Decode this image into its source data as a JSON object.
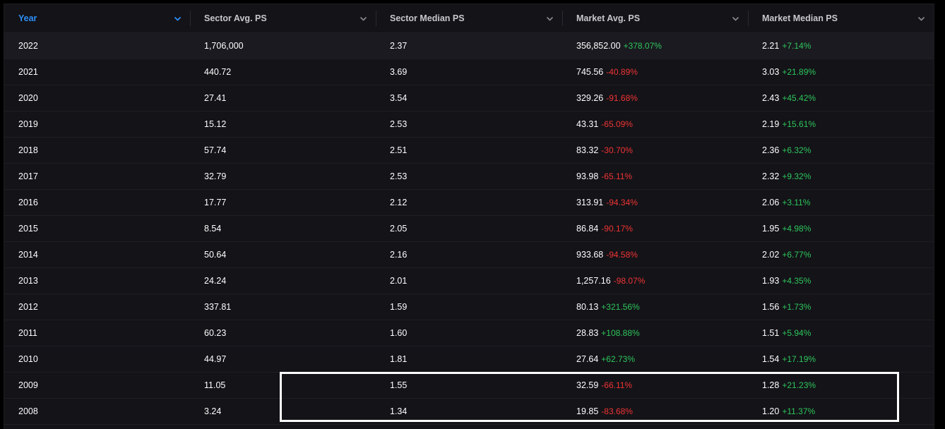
{
  "columns": [
    {
      "label": "Year",
      "active": true,
      "icon": "chevron-down-icon"
    },
    {
      "label": "Sector Avg. PS",
      "active": false,
      "icon": "chevron-down-icon"
    },
    {
      "label": "Sector Median PS",
      "active": false,
      "icon": "chevron-down-icon"
    },
    {
      "label": "Market Avg. PS",
      "active": false,
      "icon": "chevron-down-icon"
    },
    {
      "label": "Market Median PS",
      "active": false,
      "icon": "chevron-down-icon"
    }
  ],
  "rows": [
    {
      "year": "2022",
      "sector_avg": "1,706,000",
      "sector_median": "2.37",
      "market_avg": "356,852.00",
      "market_avg_change": "+378.07%",
      "market_median": "2.21",
      "market_median_change": "+7.14%"
    },
    {
      "year": "2021",
      "sector_avg": "440.72",
      "sector_median": "3.69",
      "market_avg": "745.56",
      "market_avg_change": "-40.89%",
      "market_median": "3.03",
      "market_median_change": "+21.89%"
    },
    {
      "year": "2020",
      "sector_avg": "27.41",
      "sector_median": "3.54",
      "market_avg": "329.26",
      "market_avg_change": "-91.68%",
      "market_median": "2.43",
      "market_median_change": "+45.42%"
    },
    {
      "year": "2019",
      "sector_avg": "15.12",
      "sector_median": "2.53",
      "market_avg": "43.31",
      "market_avg_change": "-65.09%",
      "market_median": "2.19",
      "market_median_change": "+15.61%"
    },
    {
      "year": "2018",
      "sector_avg": "57.74",
      "sector_median": "2.51",
      "market_avg": "83.32",
      "market_avg_change": "-30.70%",
      "market_median": "2.36",
      "market_median_change": "+6.32%"
    },
    {
      "year": "2017",
      "sector_avg": "32.79",
      "sector_median": "2.53",
      "market_avg": "93.98",
      "market_avg_change": "-65.11%",
      "market_median": "2.32",
      "market_median_change": "+9.32%"
    },
    {
      "year": "2016",
      "sector_avg": "17.77",
      "sector_median": "2.12",
      "market_avg": "313.91",
      "market_avg_change": "-94.34%",
      "market_median": "2.06",
      "market_median_change": "+3.11%"
    },
    {
      "year": "2015",
      "sector_avg": "8.54",
      "sector_median": "2.05",
      "market_avg": "86.84",
      "market_avg_change": "-90.17%",
      "market_median": "1.95",
      "market_median_change": "+4.98%"
    },
    {
      "year": "2014",
      "sector_avg": "50.64",
      "sector_median": "2.16",
      "market_avg": "933.68",
      "market_avg_change": "-94.58%",
      "market_median": "2.02",
      "market_median_change": "+6.77%"
    },
    {
      "year": "2013",
      "sector_avg": "24.24",
      "sector_median": "2.01",
      "market_avg": "1,257.16",
      "market_avg_change": "-98.07%",
      "market_median": "1.93",
      "market_median_change": "+4.35%"
    },
    {
      "year": "2012",
      "sector_avg": "337.81",
      "sector_median": "1.59",
      "market_avg": "80.13",
      "market_avg_change": "+321.56%",
      "market_median": "1.56",
      "market_median_change": "+1.73%"
    },
    {
      "year": "2011",
      "sector_avg": "60.23",
      "sector_median": "1.60",
      "market_avg": "28.83",
      "market_avg_change": "+108.88%",
      "market_median": "1.51",
      "market_median_change": "+5.94%"
    },
    {
      "year": "2010",
      "sector_avg": "44.97",
      "sector_median": "1.81",
      "market_avg": "27.64",
      "market_avg_change": "+62.73%",
      "market_median": "1.54",
      "market_median_change": "+17.19%"
    },
    {
      "year": "2009",
      "sector_avg": "11.05",
      "sector_median": "1.55",
      "market_avg": "32.59",
      "market_avg_change": "-66.11%",
      "market_median": "1.28",
      "market_median_change": "+21.23%"
    },
    {
      "year": "2008",
      "sector_avg": "3.24",
      "sector_median": "1.34",
      "market_avg": "19.85",
      "market_avg_change": "-83.68%",
      "market_median": "1.20",
      "market_median_change": "+11.37%"
    }
  ],
  "colors": {
    "active_header": "#2e8ef6",
    "positive": "#2fc55b",
    "negative": "#f03434",
    "highlight_box": "#ffffff"
  }
}
